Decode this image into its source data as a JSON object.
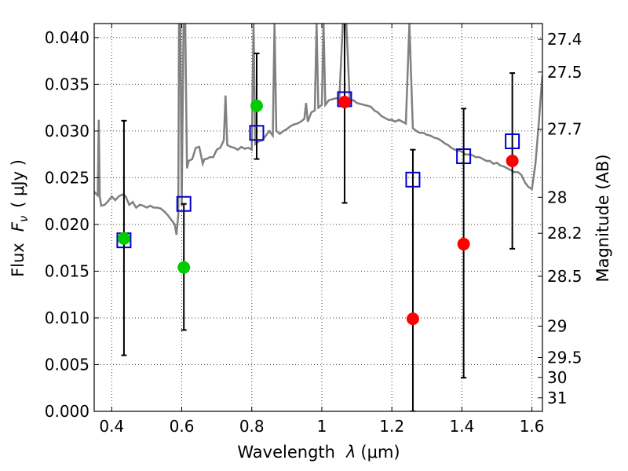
{
  "chart_data": {
    "type": "scatter",
    "xlabel_text": "Wavelength",
    "xlabel_symbol": "λ",
    "xlabel_unit": "(μm)",
    "ylabel_text": "Flux",
    "ylabel_symbol": "F",
    "ylabel_sub": "ν",
    "ylabel_unit": "( μJy )",
    "y2label": "Magnitude (AB)",
    "xlim": [
      0.35,
      1.63
    ],
    "ylim": [
      0.0,
      0.0415
    ],
    "grid": true,
    "x_ticks": [
      {
        "value": 0.4,
        "label": "0.4"
      },
      {
        "value": 0.6,
        "label": "0.6"
      },
      {
        "value": 0.8,
        "label": "0.8"
      },
      {
        "value": 1.0,
        "label": "1"
      },
      {
        "value": 1.2,
        "label": "1.2"
      },
      {
        "value": 1.4,
        "label": "1.4"
      },
      {
        "value": 1.6,
        "label": "1.6"
      }
    ],
    "y_ticks": [
      {
        "value": 0.0,
        "label": "0.000"
      },
      {
        "value": 0.005,
        "label": "0.005"
      },
      {
        "value": 0.01,
        "label": "0.010"
      },
      {
        "value": 0.015,
        "label": "0.015"
      },
      {
        "value": 0.02,
        "label": "0.020"
      },
      {
        "value": 0.025,
        "label": "0.025"
      },
      {
        "value": 0.03,
        "label": "0.030"
      },
      {
        "value": 0.035,
        "label": "0.035"
      },
      {
        "value": 0.04,
        "label": "0.040"
      }
    ],
    "mag_ticks": [
      {
        "mag": 27.4,
        "label": "27.4"
      },
      {
        "mag": 27.5,
        "label": "27.5"
      },
      {
        "mag": 27.7,
        "label": "27.7"
      },
      {
        "mag": 28.0,
        "label": "28"
      },
      {
        "mag": 28.2,
        "label": "28.2"
      },
      {
        "mag": 28.5,
        "label": "28.5"
      },
      {
        "mag": 29.0,
        "label": "29"
      },
      {
        "mag": 29.5,
        "label": "29.5"
      },
      {
        "mag": 30.0,
        "label": "30"
      },
      {
        "mag": 31.0,
        "label": "31"
      }
    ],
    "model_spectrum": [
      [
        0.35,
        0.0235
      ],
      [
        0.36,
        0.0231
      ],
      [
        0.363,
        0.0312
      ],
      [
        0.366,
        0.023
      ],
      [
        0.37,
        0.022
      ],
      [
        0.38,
        0.0221
      ],
      [
        0.39,
        0.0225
      ],
      [
        0.4,
        0.023
      ],
      [
        0.41,
        0.0226
      ],
      [
        0.42,
        0.023
      ],
      [
        0.43,
        0.0232
      ],
      [
        0.44,
        0.023
      ],
      [
        0.45,
        0.0221
      ],
      [
        0.46,
        0.0224
      ],
      [
        0.47,
        0.0218
      ],
      [
        0.48,
        0.0221
      ],
      [
        0.49,
        0.022
      ],
      [
        0.5,
        0.0218
      ],
      [
        0.51,
        0.022
      ],
      [
        0.52,
        0.0218
      ],
      [
        0.53,
        0.0218
      ],
      [
        0.54,
        0.0217
      ],
      [
        0.55,
        0.0214
      ],
      [
        0.56,
        0.021
      ],
      [
        0.57,
        0.0205
      ],
      [
        0.58,
        0.02
      ],
      [
        0.585,
        0.0189
      ],
      [
        0.59,
        0.021
      ],
      [
        0.592,
        0.0415
      ],
      [
        0.596,
        0.0415
      ],
      [
        0.6,
        0.022
      ],
      [
        0.605,
        0.0415
      ],
      [
        0.61,
        0.0415
      ],
      [
        0.615,
        0.026
      ],
      [
        0.62,
        0.0268
      ],
      [
        0.63,
        0.027
      ],
      [
        0.64,
        0.0282
      ],
      [
        0.65,
        0.0283
      ],
      [
        0.66,
        0.0265
      ],
      [
        0.665,
        0.027
      ],
      [
        0.67,
        0.027
      ],
      [
        0.68,
        0.0272
      ],
      [
        0.69,
        0.0272
      ],
      [
        0.7,
        0.028
      ],
      [
        0.71,
        0.0282
      ],
      [
        0.72,
        0.029
      ],
      [
        0.725,
        0.0338
      ],
      [
        0.73,
        0.0285
      ],
      [
        0.74,
        0.0283
      ],
      [
        0.75,
        0.0282
      ],
      [
        0.76,
        0.028
      ],
      [
        0.77,
        0.0283
      ],
      [
        0.78,
        0.0281
      ],
      [
        0.79,
        0.0282
      ],
      [
        0.8,
        0.028
      ],
      [
        0.805,
        0.0415
      ],
      [
        0.81,
        0.0286
      ],
      [
        0.82,
        0.0289
      ],
      [
        0.83,
        0.029
      ],
      [
        0.84,
        0.0295
      ],
      [
        0.85,
        0.03
      ],
      [
        0.86,
        0.0295
      ],
      [
        0.865,
        0.0415
      ],
      [
        0.87,
        0.03
      ],
      [
        0.88,
        0.0297
      ],
      [
        0.89,
        0.03
      ],
      [
        0.9,
        0.0302
      ],
      [
        0.91,
        0.0305
      ],
      [
        0.92,
        0.0307
      ],
      [
        0.93,
        0.0308
      ],
      [
        0.94,
        0.031
      ],
      [
        0.95,
        0.0313
      ],
      [
        0.955,
        0.033
      ],
      [
        0.96,
        0.031
      ],
      [
        0.97,
        0.032
      ],
      [
        0.98,
        0.0322
      ],
      [
        0.985,
        0.0415
      ],
      [
        0.99,
        0.0325
      ],
      [
        1.0,
        0.0328
      ],
      [
        1.005,
        0.0415
      ],
      [
        1.01,
        0.0328
      ],
      [
        1.02,
        0.0333
      ],
      [
        1.03,
        0.0334
      ],
      [
        1.04,
        0.0335
      ],
      [
        1.05,
        0.0335
      ],
      [
        1.06,
        0.0415
      ],
      [
        1.07,
        0.0415
      ],
      [
        1.08,
        0.0332
      ],
      [
        1.09,
        0.0333
      ],
      [
        1.1,
        0.033
      ],
      [
        1.12,
        0.0328
      ],
      [
        1.14,
        0.0326
      ],
      [
        1.15,
        0.0322
      ],
      [
        1.16,
        0.032
      ],
      [
        1.17,
        0.0316
      ],
      [
        1.18,
        0.0314
      ],
      [
        1.19,
        0.0312
      ],
      [
        1.2,
        0.0312
      ],
      [
        1.21,
        0.031
      ],
      [
        1.22,
        0.0312
      ],
      [
        1.23,
        0.031
      ],
      [
        1.24,
        0.0308
      ],
      [
        1.25,
        0.0415
      ],
      [
        1.26,
        0.0303
      ],
      [
        1.27,
        0.03
      ],
      [
        1.28,
        0.0298
      ],
      [
        1.29,
        0.0298
      ],
      [
        1.3,
        0.0296
      ],
      [
        1.31,
        0.0295
      ],
      [
        1.32,
        0.0293
      ],
      [
        1.33,
        0.0292
      ],
      [
        1.34,
        0.029
      ],
      [
        1.35,
        0.0287
      ],
      [
        1.36,
        0.0285
      ],
      [
        1.37,
        0.0282
      ],
      [
        1.38,
        0.028
      ],
      [
        1.39,
        0.0279
      ],
      [
        1.4,
        0.0278
      ],
      [
        1.41,
        0.0275
      ],
      [
        1.42,
        0.0275
      ],
      [
        1.43,
        0.0274
      ],
      [
        1.44,
        0.0272
      ],
      [
        1.45,
        0.0272
      ],
      [
        1.46,
        0.027
      ],
      [
        1.47,
        0.0268
      ],
      [
        1.48,
        0.0268
      ],
      [
        1.49,
        0.0265
      ],
      [
        1.5,
        0.0266
      ],
      [
        1.51,
        0.0263
      ],
      [
        1.52,
        0.0262
      ],
      [
        1.53,
        0.026
      ],
      [
        1.54,
        0.0258
      ],
      [
        1.55,
        0.0256
      ],
      [
        1.56,
        0.0256
      ],
      [
        1.57,
        0.0253
      ],
      [
        1.58,
        0.0245
      ],
      [
        1.59,
        0.024
      ],
      [
        1.6,
        0.0238
      ],
      [
        1.61,
        0.0265
      ],
      [
        1.62,
        0.031
      ],
      [
        1.63,
        0.036
      ]
    ],
    "model_points": [
      {
        "x": 0.435,
        "y": 0.0183
      },
      {
        "x": 0.606,
        "y": 0.0222
      },
      {
        "x": 0.814,
        "y": 0.0298
      },
      {
        "x": 1.065,
        "y": 0.0334
      },
      {
        "x": 1.26,
        "y": 0.0248
      },
      {
        "x": 1.405,
        "y": 0.0273
      },
      {
        "x": 1.544,
        "y": 0.0289
      }
    ],
    "observed": [
      {
        "x": 0.435,
        "y": 0.0185,
        "yerr_lo": 0.0125,
        "yerr_hi": 0.0126,
        "color": "#00cc00"
      },
      {
        "x": 0.606,
        "y": 0.0154,
        "yerr_lo": 0.0067,
        "yerr_hi": 0.0068,
        "color": "#00cc00"
      },
      {
        "x": 0.814,
        "y": 0.0327,
        "yerr_lo": 0.0057,
        "yerr_hi": 0.0056,
        "color": "#00cc00"
      },
      {
        "x": 1.065,
        "y": 0.0331,
        "yerr_lo": 0.0108,
        "yerr_hi": 0.0108,
        "color": "#ff0000"
      },
      {
        "x": 1.26,
        "y": 0.0099,
        "yerr_lo": 0.0099,
        "yerr_hi": 0.0181,
        "color": "#ff0000"
      },
      {
        "x": 1.405,
        "y": 0.0179,
        "yerr_lo": 0.0143,
        "yerr_hi": 0.0145,
        "color": "#ff0000"
      },
      {
        "x": 1.544,
        "y": 0.0268,
        "yerr_lo": 0.0094,
        "yerr_hi": 0.0094,
        "color": "#ff0000"
      }
    ],
    "colors": {
      "spectrum": "#808080",
      "model_box": "#0000cc",
      "axes": "#000000"
    }
  }
}
